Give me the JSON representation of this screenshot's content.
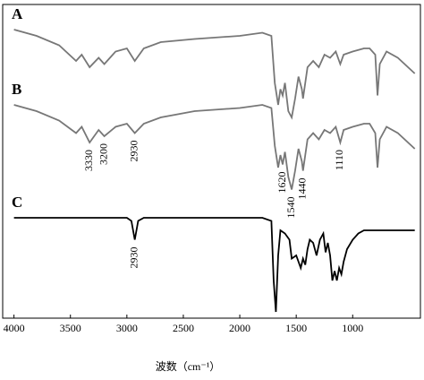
{
  "chart_data": {
    "type": "line",
    "x_label": "波数（cm⁻¹）",
    "xlim": [
      4100,
      400
    ],
    "xticks": [
      4000,
      3500,
      3000,
      2500,
      2000,
      1500,
      1000
    ],
    "ylim": [
      0,
      100
    ],
    "series": [
      {
        "name": "A",
        "color": "#777777",
        "x": [
          4000,
          3800,
          3600,
          3450,
          3400,
          3330,
          3250,
          3200,
          3100,
          3000,
          2930,
          2850,
          2700,
          2400,
          2000,
          1800,
          1720,
          1690,
          1660,
          1640,
          1620,
          1600,
          1570,
          1540,
          1510,
          1480,
          1450,
          1440,
          1400,
          1350,
          1300,
          1250,
          1200,
          1150,
          1110,
          1080,
          1000,
          900,
          850,
          800,
          780,
          760,
          700,
          600,
          450
        ],
        "values": [
          92,
          90,
          87,
          82,
          84,
          80,
          83,
          81,
          85,
          86,
          82,
          86,
          88,
          89,
          90,
          91,
          90,
          75,
          68,
          73,
          71,
          75,
          66,
          64,
          70,
          77,
          73,
          70,
          80,
          82,
          80,
          84,
          83,
          85,
          81,
          84,
          85,
          86,
          86,
          84,
          71,
          81,
          85,
          83,
          78
        ],
        "annotations": []
      },
      {
        "name": "B",
        "color": "#777777",
        "x": [
          4000,
          3800,
          3600,
          3450,
          3400,
          3330,
          3250,
          3200,
          3100,
          3000,
          2930,
          2850,
          2700,
          2400,
          2000,
          1800,
          1720,
          1690,
          1660,
          1640,
          1620,
          1600,
          1570,
          1540,
          1510,
          1480,
          1450,
          1440,
          1400,
          1350,
          1300,
          1250,
          1200,
          1150,
          1110,
          1080,
          1000,
          900,
          850,
          800,
          780,
          760,
          700,
          600,
          450
        ],
        "values": [
          68,
          66,
          63,
          59,
          61,
          56,
          60,
          58,
          61,
          62,
          59,
          62,
          64,
          66,
          67,
          68,
          67,
          55,
          48,
          52,
          49,
          53,
          45,
          41,
          47,
          54,
          50,
          47,
          57,
          59,
          57,
          60,
          59,
          61,
          56,
          60,
          61,
          62,
          62,
          59,
          48,
          57,
          61,
          59,
          54
        ],
        "annotations": [
          3330,
          3200,
          2930,
          1620,
          1540,
          1440,
          1110
        ]
      },
      {
        "name": "C",
        "color": "#000000",
        "x": [
          4000,
          3000,
          2960,
          2930,
          2900,
          2850,
          1800,
          1720,
          1700,
          1680,
          1660,
          1640,
          1600,
          1560,
          1540,
          1500,
          1460,
          1440,
          1420,
          1400,
          1380,
          1350,
          1320,
          1290,
          1260,
          1240,
          1220,
          1200,
          1180,
          1160,
          1140,
          1120,
          1100,
          1080,
          1050,
          1000,
          950,
          900,
          800,
          700,
          450
        ],
        "values": [
          32,
          32,
          31,
          25,
          31,
          32,
          32,
          31,
          12,
          2,
          20,
          28,
          27,
          25,
          19,
          20,
          16,
          19,
          17,
          22,
          25,
          24,
          20,
          25,
          27,
          21,
          24,
          20,
          12,
          15,
          12,
          16,
          14,
          18,
          22,
          25,
          27,
          28,
          28,
          28,
          28
        ],
        "annotations": [
          2930
        ]
      }
    ]
  }
}
